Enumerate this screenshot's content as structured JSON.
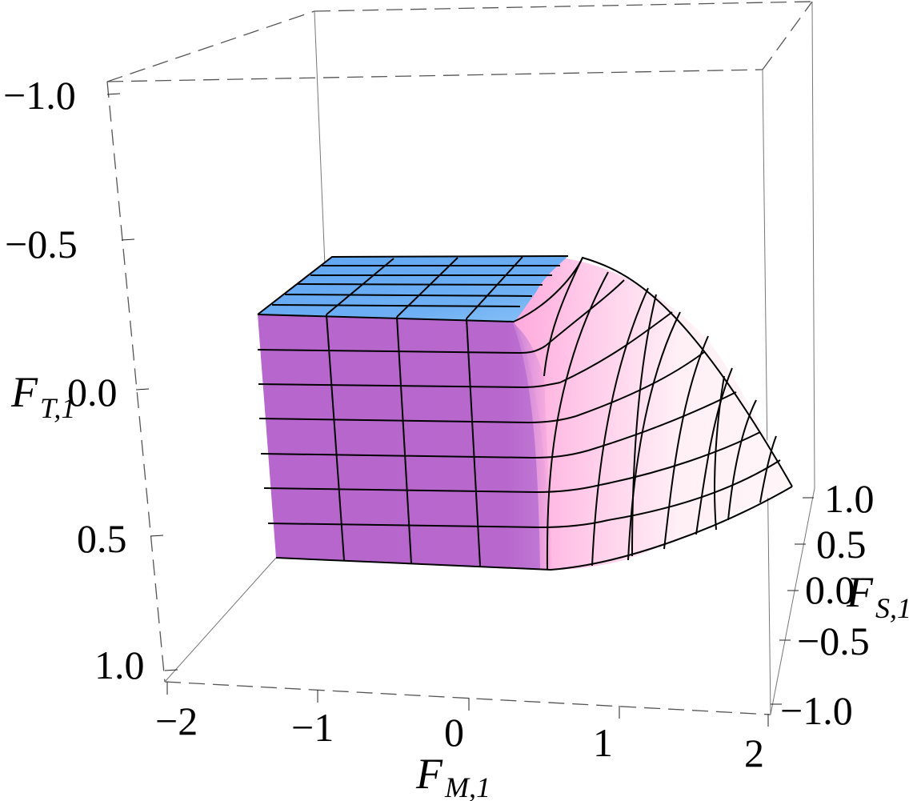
{
  "chart_data": {
    "type": "surface3d",
    "title": "",
    "axes": {
      "x": {
        "label": "F",
        "subscript": "M,1",
        "ticks": [
          "−2",
          "−1",
          "0",
          "1",
          "2"
        ],
        "range": [
          -2,
          2
        ]
      },
      "y": {
        "label": "F",
        "subscript": "S,1",
        "ticks": [
          "1.0",
          "0.5",
          "0.0",
          "−0.5",
          "−1.0"
        ],
        "range": [
          -1,
          1
        ]
      },
      "z": {
        "label": "F",
        "subscript": "T,1",
        "ticks": [
          "−1.0",
          "−0.5",
          "0.0",
          "0.5",
          "1.0"
        ],
        "range": [
          -1,
          1
        ]
      }
    },
    "surface": {
      "description_shape": "flat-topped block at F_T,1 ≈ −0.4 for F_M,1 ≤ 0.5, smoothly rounded edge falling to ≈ 0.6 at F_M,1 = 2",
      "top_level": -0.4,
      "bottom_level": 0.6,
      "flat_until_x": 0.5,
      "falls_to_x": 2
    },
    "colors": {
      "front_face": "#b666cc",
      "top_face": "#6aaef5",
      "rounded_face_light": "#ffeef8",
      "rounded_face_pink": "#ff9fd8",
      "box": "#777777"
    },
    "grid": false,
    "box": true
  }
}
